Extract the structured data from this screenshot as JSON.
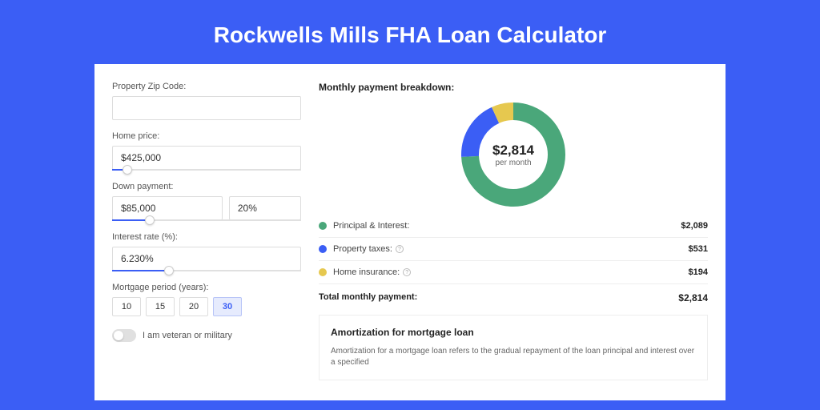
{
  "header": {
    "title": "Rockwells Mills FHA Loan Calculator"
  },
  "colors": {
    "brand": "#3b5ef5",
    "green": "#4aa77a",
    "blue": "#3b5ef5",
    "yellow": "#e6c84f"
  },
  "form": {
    "zip": {
      "label": "Property Zip Code:",
      "value": ""
    },
    "homePrice": {
      "label": "Home price:",
      "value": "$425,000",
      "slider_pct": 8
    },
    "downPayment": {
      "label": "Down payment:",
      "amount": "$85,000",
      "pct": "20%",
      "slider_pct": 20
    },
    "interestRate": {
      "label": "Interest rate (%):",
      "value": "6.230%",
      "slider_pct": 30
    },
    "mortgagePeriod": {
      "label": "Mortgage period (years):",
      "options": [
        "10",
        "15",
        "20",
        "30"
      ],
      "selected": "30"
    },
    "veteran": {
      "label": "I am veteran or military",
      "on": false
    }
  },
  "breakdown": {
    "title": "Monthly payment breakdown:",
    "center_amount": "$2,814",
    "center_sub": "per month",
    "donut": {
      "size": 130,
      "stroke": 22,
      "slices": [
        {
          "key": "pi",
          "color": "#4aa77a",
          "fraction": 0.742
        },
        {
          "key": "tax",
          "color": "#3b5ef5",
          "fraction": 0.189
        },
        {
          "key": "ins",
          "color": "#e6c84f",
          "fraction": 0.069
        }
      ]
    },
    "items": [
      {
        "key": "pi",
        "label": "Principal & Interest:",
        "value": "$2,089",
        "color": "#4aa77a",
        "help": false
      },
      {
        "key": "tax",
        "label": "Property taxes:",
        "value": "$531",
        "color": "#3b5ef5",
        "help": true
      },
      {
        "key": "ins",
        "label": "Home insurance:",
        "value": "$194",
        "color": "#e6c84f",
        "help": true
      }
    ],
    "total_label": "Total monthly payment:",
    "total_value": "$2,814"
  },
  "amortization": {
    "title": "Amortization for mortgage loan",
    "text": "Amortization for a mortgage loan refers to the gradual repayment of the loan principal and interest over a specified"
  }
}
